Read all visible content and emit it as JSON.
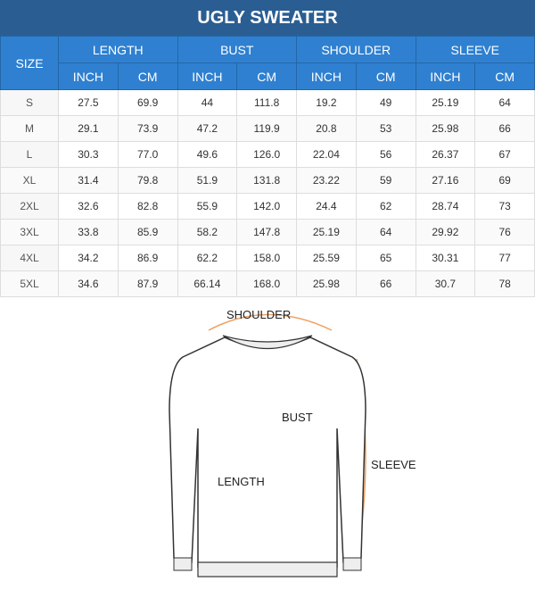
{
  "title": "UGLY SWEATER",
  "headers": {
    "size": "SIZE",
    "groups": [
      "LENGTH",
      "BUST",
      "SHOULDER",
      "SLEEVE"
    ],
    "units": [
      "INCH",
      "CM",
      "INCH",
      "CM",
      "INCH",
      "CM",
      "INCH",
      "CM"
    ]
  },
  "rows": [
    [
      "S",
      "27.5",
      "69.9",
      "44",
      "111.8",
      "19.2",
      "49",
      "25.19",
      "64"
    ],
    [
      "M",
      "29.1",
      "73.9",
      "47.2",
      "119.9",
      "20.8",
      "53",
      "25.98",
      "66"
    ],
    [
      "L",
      "30.3",
      "77.0",
      "49.6",
      "126.0",
      "22.04",
      "56",
      "26.37",
      "67"
    ],
    [
      "XL",
      "31.4",
      "79.8",
      "51.9",
      "131.8",
      "23.22",
      "59",
      "27.16",
      "69"
    ],
    [
      "2XL",
      "32.6",
      "82.8",
      "55.9",
      "142.0",
      "24.4",
      "62",
      "28.74",
      "73"
    ],
    [
      "3XL",
      "33.8",
      "85.9",
      "58.2",
      "147.8",
      "25.19",
      "64",
      "29.92",
      "76"
    ],
    [
      "4XL",
      "34.2",
      "86.9",
      "62.2",
      "158.0",
      "25.59",
      "65",
      "30.31",
      "77"
    ],
    [
      "5XL",
      "34.6",
      "87.9",
      "66.14",
      "168.0",
      "25.98",
      "66",
      "30.7",
      "78"
    ]
  ],
  "diagram": {
    "shoulder": "SHOULDER",
    "bust": "BUST",
    "length": "LENGTH",
    "sleeve": "SLEEVE"
  },
  "colors": {
    "title_bg": "#2a5e92",
    "header_bg": "#2f80d0",
    "measure_line": "#f0a060"
  }
}
